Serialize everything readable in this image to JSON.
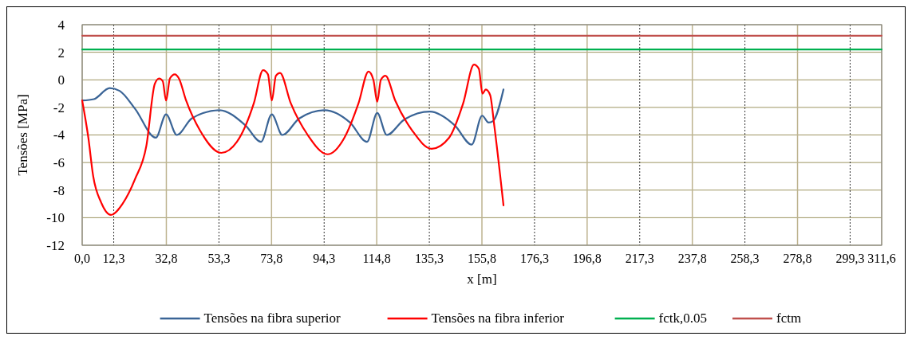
{
  "chart_data": {
    "type": "line",
    "xlabel": "x [m]",
    "ylabel": "Tensões [MPa]",
    "xlim": [
      0,
      311.6
    ],
    "xticks": [
      {
        "value": 0,
        "label": "0,0"
      },
      {
        "value": 12.3,
        "label": "12,3"
      },
      {
        "value": 32.8,
        "label": "32,8"
      },
      {
        "value": 53.3,
        "label": "53,3"
      },
      {
        "value": 73.8,
        "label": "73,8"
      },
      {
        "value": 94.3,
        "label": "94,3"
      },
      {
        "value": 114.8,
        "label": "114,8"
      },
      {
        "value": 135.3,
        "label": "135,3"
      },
      {
        "value": 155.8,
        "label": "155,8"
      },
      {
        "value": 176.3,
        "label": "176,3"
      },
      {
        "value": 196.8,
        "label": "196,8"
      },
      {
        "value": 217.3,
        "label": "217,3"
      },
      {
        "value": 237.8,
        "label": "237,8"
      },
      {
        "value": 258.3,
        "label": "258,3"
      },
      {
        "value": 278.8,
        "label": "278,8"
      },
      {
        "value": 299.3,
        "label": "299,3"
      },
      {
        "value": 311.6,
        "label": "311,6"
      }
    ],
    "ylim": [
      -12,
      4
    ],
    "yticks": [
      -12,
      -10,
      -8,
      -6,
      -4,
      -2,
      0,
      2,
      4
    ],
    "grid": true,
    "legend": "bottom",
    "marker": "none",
    "line_style": "solid",
    "series": [
      {
        "name": "Tensões na fibra superior",
        "color": "#3a6496",
        "x": [
          0,
          4.6,
          10.7,
          14.6,
          20.6,
          28.7,
          32.7,
          36.9,
          42.7,
          53.4,
          63.6,
          69.7,
          73.9,
          78,
          84.6,
          94.4,
          104.4,
          111,
          115,
          118.7,
          125.4,
          135.5,
          145.2,
          151.8,
          155.9,
          158.4,
          160.1,
          164.2
        ],
        "values": [
          -1.5,
          -1.4,
          -0.6,
          -0.8,
          -2.1,
          -4.2,
          -2.5,
          -4.0,
          -2.8,
          -2.2,
          -3.3,
          -4.5,
          -2.5,
          -4.0,
          -2.8,
          -2.2,
          -3.1,
          -4.5,
          -2.4,
          -4.0,
          -2.9,
          -2.3,
          -3.3,
          -4.7,
          -2.6,
          -3.1,
          -3.0,
          -0.7
        ]
      },
      {
        "name": "Tensões na fibra inferior",
        "color": "#ff0000",
        "x": [
          0,
          2.4,
          4.3,
          7.4,
          11.2,
          15.7,
          20.6,
          25,
          28.3,
          30,
          31.4,
          32.7,
          34.2,
          36.1,
          37.7,
          40.5,
          46,
          54.2,
          60.3,
          66.9,
          70.5,
          72.4,
          73.9,
          75.5,
          77.1,
          81.3,
          87.9,
          95.6,
          102.2,
          107.7,
          111.6,
          113.5,
          115,
          116.4,
          118.2,
          122,
          128.7,
          136.2,
          143,
          148.5,
          152.7,
          154.6,
          156,
          157.3,
          159,
          160.6,
          164.2
        ],
        "values": [
          -1.5,
          -4.2,
          -7.0,
          -8.9,
          -9.8,
          -9.0,
          -7.2,
          -4.8,
          -0.3,
          0.1,
          -0.1,
          -1.5,
          0.1,
          0.4,
          0.1,
          -1.5,
          -3.7,
          -5.3,
          -4.5,
          -1.7,
          0.7,
          0.4,
          -1.5,
          0.3,
          0.5,
          -1.7,
          -4.0,
          -5.4,
          -4.2,
          -1.7,
          0.6,
          0.0,
          -1.6,
          0.0,
          0.3,
          -1.5,
          -3.7,
          -5.0,
          -4.2,
          -1.7,
          1.1,
          0.8,
          -1.0,
          -0.7,
          -1.1,
          -3.3,
          -9.1
        ]
      },
      {
        "name": "fctk,0.05",
        "color": "#00b050",
        "x": [
          0,
          311.6
        ],
        "values": [
          2.2,
          2.2
        ]
      },
      {
        "name": "fctm",
        "color": "#c0504d",
        "x": [
          0,
          311.6
        ],
        "values": [
          3.2,
          3.2
        ]
      }
    ]
  }
}
